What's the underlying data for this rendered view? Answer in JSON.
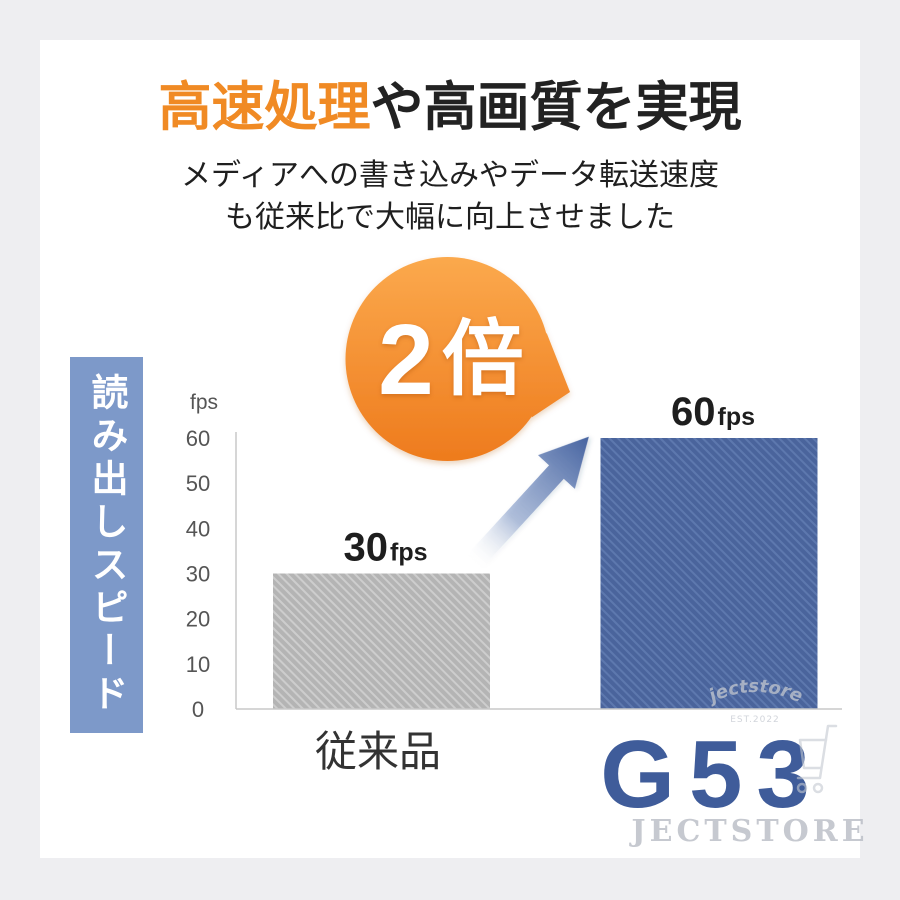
{
  "header": {
    "title_highlight": "高速処理",
    "title_rest": "や高画質を実現",
    "subtitle_lines": [
      "メディアへの書き込みやデータ転送速度",
      "も従来比で大幅に向上させました"
    ]
  },
  "badge": {
    "number": "2",
    "unit": "倍"
  },
  "chart_data": {
    "type": "bar",
    "ylabel": "読み出しスピード",
    "unit": "fps",
    "categories": [
      "従来品",
      "G53"
    ],
    "values": [
      30,
      60
    ],
    "yticks": [
      0,
      10,
      20,
      30,
      40,
      50,
      60
    ],
    "ylim": [
      0,
      60
    ],
    "grid": false,
    "legend": "none"
  },
  "colors": {
    "accent_orange": "#f08a24",
    "badge_top": "#fba94d",
    "badge_bottom": "#ee7b1d",
    "text_dark": "#222222",
    "ylabel_box": "#7d99c9",
    "bar_conventional": "#b4b4b4",
    "bar_conventional_stripe": "#cdcdcd",
    "bar_product": "#4a649c",
    "bar_product_stripe": "#5d78ae",
    "product_name": "#3f5c9a",
    "arrow": "#4663a0"
  },
  "icons": {
    "comparison_arrow": "arrow-up-right-icon",
    "watermark_mark": "cart-icon"
  },
  "watermark": {
    "brand": "JECTSTORE",
    "logo_text": "jectstore",
    "est": "EST.2022"
  }
}
